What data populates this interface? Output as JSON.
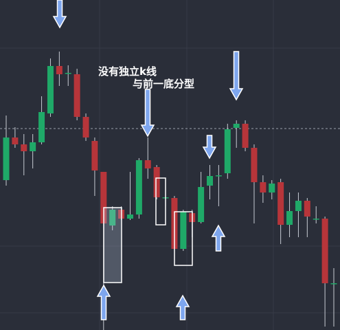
{
  "chart_data": {
    "type": "candlestick",
    "annotations": [
      "没有独立k线",
      "与前一底分型"
    ],
    "ylim": [
      0,
      480
    ],
    "up_color": "#1fa968",
    "down_color": "#b7353a",
    "open": [
      218,
      280,
      270,
      260,
      273,
      315,
      384,
      373,
      372,
      310,
      275,
      230,
      152,
      175,
      162,
      168,
      247,
      237,
      192,
      192,
      118,
      170,
      157,
      210,
      224,
      228,
      294,
      300,
      265,
      215,
      200,
      215,
      153,
      173,
      188,
      161,
      162,
      67
    ],
    "high": [
      312,
      295,
      285,
      285,
      340,
      395,
      405,
      385,
      380,
      315,
      280,
      230,
      180,
      180,
      230,
      250,
      280,
      240,
      220,
      195,
      175,
      175,
      230,
      240,
      240,
      300,
      305,
      305,
      270,
      225,
      218,
      220,
      200,
      200,
      192,
      180,
      165,
      90
    ],
    "low": [
      210,
      265,
      225,
      235,
      270,
      310,
      355,
      355,
      305,
      275,
      195,
      0,
      145,
      160,
      160,
      162,
      220,
      190,
      180,
      115,
      115,
      135,
      155,
      190,
      180,
      220,
      265,
      260,
      155,
      185,
      190,
      125,
      135,
      135,
      135,
      155,
      5,
      5
    ],
    "close": [
      280,
      270,
      260,
      273,
      317,
      384,
      372,
      374,
      310,
      280,
      232,
      155,
      175,
      162,
      168,
      247,
      235,
      193,
      193,
      118,
      172,
      157,
      208,
      224,
      225,
      292,
      300,
      265,
      215,
      200,
      213,
      153,
      173,
      188,
      165,
      162,
      68,
      68
    ]
  }
}
